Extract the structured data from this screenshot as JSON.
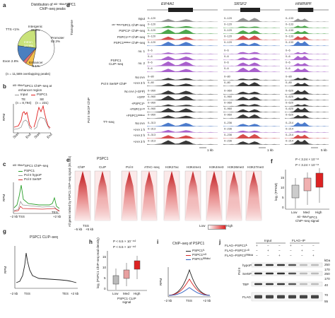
{
  "panels": {
    "a": {
      "letter": "a",
      "title_lines": [
        "Distribution of ᴬᴵᴰ⁻ᶠᴮᴵᴬᶜᴾSPC1",
        "ChIP–seq peaks"
      ],
      "slices": [
        {
          "label": "Promoter",
          "value": 53.3,
          "color": "#ffffff"
        },
        {
          "label": "Intergenic",
          "value": 22.2,
          "color": "#c9e27a"
        },
        {
          "label": "Intron",
          "value": 14.9,
          "color": "#4a7fc0"
        },
        {
          "label": "Exon",
          "value": 2.8,
          "color": "#e57373"
        },
        {
          "label": "Enhancer",
          "value": 6.1,
          "color": "#f5c04a"
        },
        {
          "label": "TTS",
          "value": 0.7,
          "color": "#cccccc"
        }
      ],
      "label_promoter": "Promoter\n53.3%",
      "label_intergenic": "Intergenic\n22.2%",
      "label_intron": "Intron\n14.9%",
      "label_exon": "Exon 2.8%",
      "label_enhancer": "Enhancer\n6.1%",
      "label_tts": "TTS <1%",
      "note": "(n = 11,589 overlapping peaks)"
    },
    "b": {
      "letter": "b",
      "title_lines": [
        "ᴬᴵᴰ⁻ᶠᴮᴵᴬᶜᴾSPC1 ChIP–seq at",
        "enhancer region"
      ],
      "legend": [
        "Input",
        "PSPC1"
      ],
      "te": "TE\n(n = 8,794)",
      "se": "SE\n(n = 231)",
      "ylabel": "RPM",
      "x": [
        "Start",
        "End",
        "Start",
        "End"
      ]
    },
    "c": {
      "letter": "c",
      "title": "ᴬᴵᴰ⁻ᶠᴮᴵᴬᶜᴾSPC1 ChIP–seq",
      "legend": [
        "PSPC1",
        "Pol II hypoP",
        "Pol II Ser5P"
      ],
      "ylabel": "RPM",
      "x": [
        "−2 kb",
        "TSS",
        "TES",
        "+2 kb"
      ]
    },
    "d": {
      "letter": "d",
      "genes": [
        "EIF4A1",
        "SRSF2",
        "HNRNPF"
      ],
      "left_groups": [
        "Transgene",
        "PSPC1\nCLIP–seq",
        "Pol II Ser5P ChIP",
        "Pol II Ser2P ChIP",
        "TT–seq"
      ],
      "track_labels": [
        "Input",
        "ᴬᴵᴰ⁻ᶠᴮᴵᴬᶜᴾSPC1 ChIP–seq",
        "PSPC1ᶠᴸ ChIP–seq",
        "PSPC1ᴸᶜᴰ ChIP–seq",
        "PSPC1ᴿᴿᴹᵈᵉˡ ChIP–seq",
        "no. 1",
        "no. 2",
        "No IAA",
        "+IAA 3 h",
        "No IAA (+GFP)",
        "+GFP",
        "+PSPC1ᶠᴸ",
        "+PSPC1ᴸᶜᴰ",
        "+PSPC1ᴿᴿᴹᵈᵉˡ",
        "No IAA",
        "+IAA 1 h",
        "+IAA 2 h",
        "+IAA 3 h"
      ],
      "ranges_col1": [
        "0–120",
        "0–120",
        "0–120",
        "0–120",
        "0–120",
        "0–6",
        "0–6",
        "0–6",
        "0–6",
        "0–80",
        "0–80",
        "0–960",
        "0–960",
        "0–960",
        "0–960",
        "0–960",
        "0–313",
        "0–313",
        "0–313",
        "0–313"
      ],
      "ranges_col2": [
        "0–120",
        "0–120",
        "0–120",
        "0–120",
        "0–120",
        "0–6",
        "0–6",
        "0–6",
        "0–6",
        "0–80",
        "0–80",
        "0–960",
        "0–960",
        "0–960",
        "0–960",
        "0–960",
        "0–236",
        "0–236",
        "0–236",
        "0–236"
      ],
      "ranges_col3": [
        "0–133",
        "0–133",
        "0–133",
        "0–133",
        "0–133",
        "0–6",
        "0–6",
        "0–6",
        "0–6",
        "0–80",
        "0–80",
        "0–620",
        "0–620",
        "0–620",
        "0–620",
        "0–620",
        "0–214",
        "0–214",
        "0–214",
        "0–214"
      ],
      "scale": [
        "1 kb",
        "1 kb",
        "5 kb"
      ]
    },
    "e": {
      "letter": "e",
      "groups": [
        "PSPC1",
        "ChIP",
        "CLIP",
        "Pol II",
        "ATAC–seq",
        "H3K27ac",
        "H3K4me1",
        "H3K4me3",
        "H3K36me3",
        "H3K27me3"
      ],
      "ylabel": "All genes ranked by PSPC1 ChIP–seq signal (55,434)",
      "x": [
        "−5 kb",
        "TSS",
        "+5 kb"
      ],
      "legend": [
        "Low",
        "High"
      ]
    },
    "f": {
      "letter": "f",
      "p1": "P < 3.24 × 10⁻¹⁶",
      "p2": "P < 3.24 × 10⁻¹⁶",
      "ylabel": "log₂ (FPKM)",
      "cats": [
        "Low",
        "Med",
        "High"
      ],
      "xlabel": "ᴬᴵᴰ⁻ᶠᴮᴵᴬᶜᴾSPC1\nChIP–seq signal",
      "yticks": [
        "0",
        "5",
        "10",
        "15"
      ]
    },
    "g": {
      "letter": "g",
      "title": "PSPC1 CLIP–seq",
      "ylabel": "RPM",
      "x": [
        "−2 kb",
        "TSS",
        "TES",
        "+2 kb"
      ]
    },
    "h": {
      "letter": "h",
      "p1": "P < 6.5 × 10⁻¹⁶²",
      "p2": "P < 6.5 × 10⁻¹⁶²",
      "ylabel": "log₂ (PSPC1 ChIP–seq read density)",
      "cats": [
        "Low",
        "Med",
        "High"
      ],
      "xlabel": "PSPC1 CLIP\nsignal",
      "yticks": [
        "0",
        "5",
        "10",
        "15"
      ]
    },
    "i": {
      "letter": "i",
      "title": "ChIP–seq of PSPC1",
      "legend": [
        "PSPC1ᶠᴸ",
        "PSPC1ᴸᶜᴰ",
        "PSPC1ᴿᴿᴹᵈᵉˡ"
      ],
      "ylabel": "RPM",
      "x": [
        "−2 kb",
        "TSS",
        "+2 kb"
      ]
    },
    "j": {
      "letter": "j",
      "rows": [
        "FLAG–PSPC1ᶠᴸ",
        "FLAG–PSPC1ᴸᶜᴰ",
        "FLAG–PSPC1ᴿᴿᴹᵈᵉˡ"
      ],
      "cols": [
        "Input",
        "FLAG–IP"
      ],
      "blots": [
        "hypoP",
        "Ser5P",
        "TBP",
        "FLAG"
      ],
      "group": "Pol II",
      "kda": [
        "kDa",
        "250",
        "170",
        "250",
        "170",
        "40",
        "70",
        "55"
      ],
      "pm": [
        "+",
        "−",
        "−",
        "+",
        "−",
        "−",
        "−",
        "+",
        "−",
        "−",
        "+",
        "−",
        "−",
        "−",
        "+",
        "−",
        "−",
        "+"
      ]
    }
  }
}
